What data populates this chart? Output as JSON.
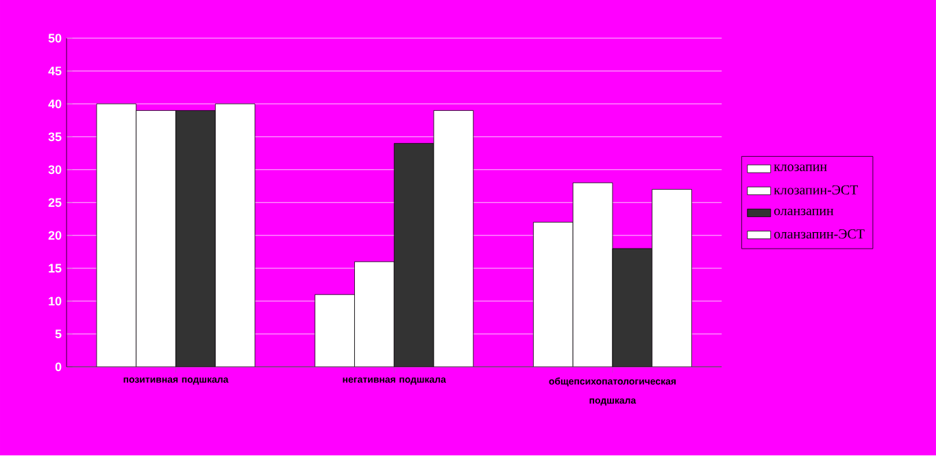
{
  "chart_data": {
    "type": "bar",
    "categories": [
      "позитивная подшкала",
      "негативная подшкала",
      "общепсихопатологическая подшкала"
    ],
    "series": [
      {
        "name": "клозапин",
        "color": "#ffffff",
        "values": [
          40,
          11,
          22
        ]
      },
      {
        "name": "клозапин-ЭСТ",
        "color": "#ffffff",
        "values": [
          39,
          16,
          28
        ]
      },
      {
        "name": "оланзапин",
        "color": "#333333",
        "values": [
          39,
          34,
          18
        ]
      },
      {
        "name": "оланзапин-ЭСТ",
        "color": "#ffffff",
        "values": [
          40,
          39,
          27
        ]
      }
    ],
    "ylim": [
      0,
      50
    ],
    "yticks": [
      0,
      5,
      10,
      15,
      20,
      25,
      30,
      35,
      40,
      45,
      50
    ],
    "grid": "y",
    "legend": "right"
  }
}
